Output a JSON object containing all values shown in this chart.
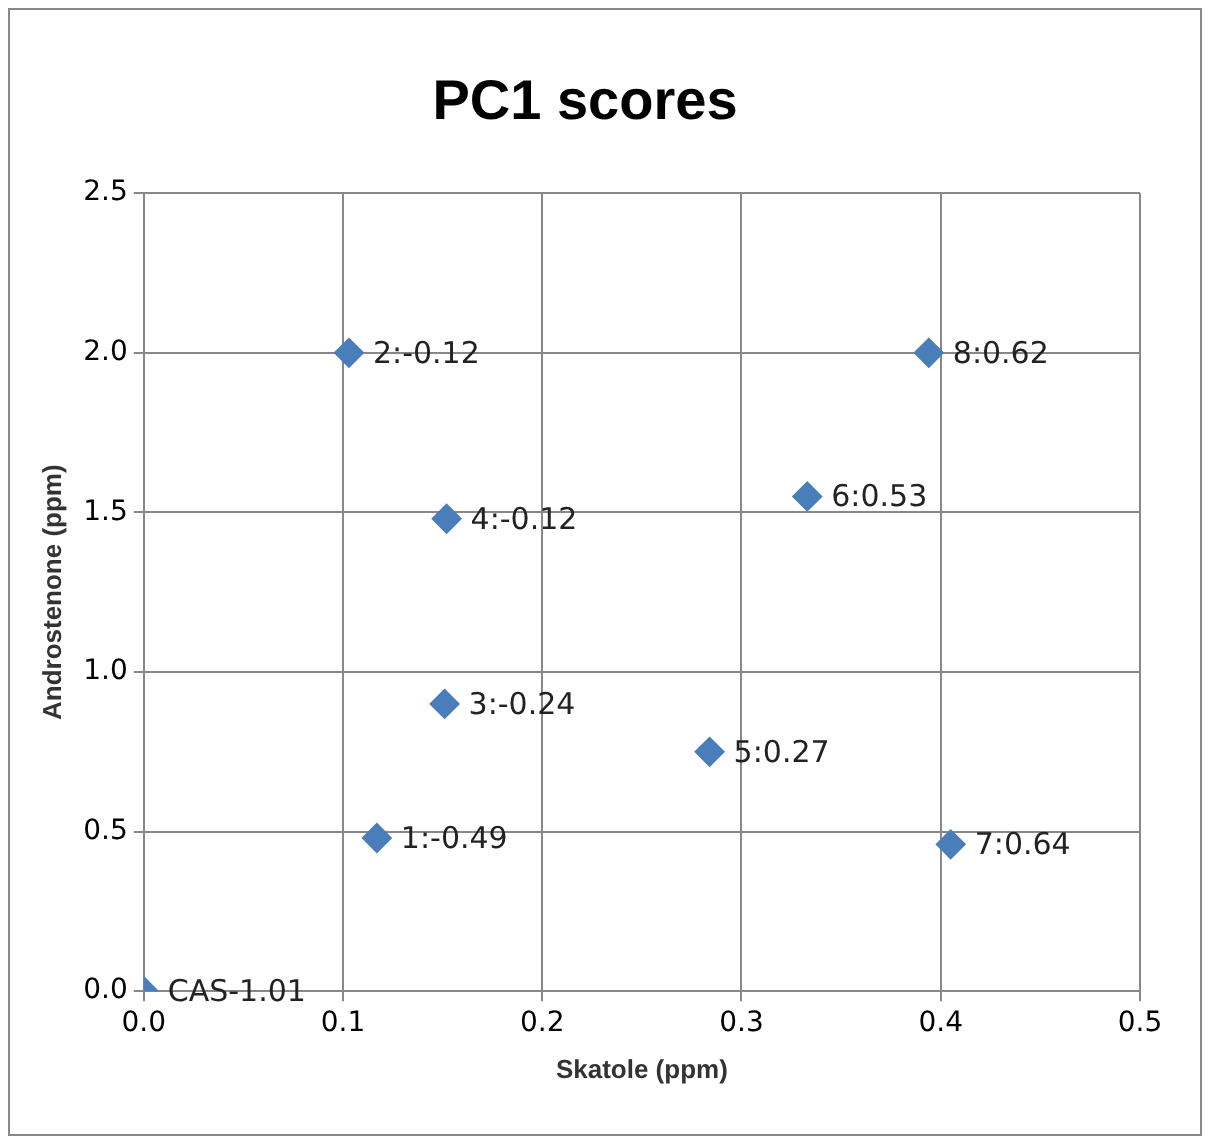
{
  "chart_data": {
    "type": "scatter",
    "title": "PC1 scores",
    "xlabel": "Skatole (ppm)",
    "ylabel": "Androstenone (ppm)",
    "x": [
      0,
      0.117,
      0.103,
      0.151,
      0.152,
      0.284,
      0.333,
      0.405,
      0.394
    ],
    "values": [
      0,
      0.48,
      2.0,
      0.9,
      1.48,
      0.75,
      1.55,
      0.46,
      2.0
    ],
    "value_labels": [
      "CAS-1.01",
      "1:-0.49",
      "2:-0.12",
      "3:-0.24",
      "4:-0.12",
      "5:0.27",
      "6:0.53",
      "7:0.64",
      "8:0.62"
    ],
    "color": "#4a7ebb",
    "marker": "diamond",
    "grid": true,
    "xlim": [
      0,
      0.5
    ],
    "xticks": [
      {
        "value": 0,
        "label": "0.0"
      },
      0.1,
      0.2,
      0.3,
      0.4,
      0.5
    ],
    "ylim": [
      0,
      2.5
    ],
    "yticks": [
      {
        "value": 0,
        "label": "0.0"
      },
      {
        "value": 0.5,
        "label": "0.5"
      },
      {
        "value": 1,
        "label": "1.0"
      },
      {
        "value": 1.5,
        "label": "1.5"
      },
      {
        "value": 2,
        "label": "2.0"
      },
      {
        "value": 2.5,
        "label": "2.5"
      }
    ]
  }
}
